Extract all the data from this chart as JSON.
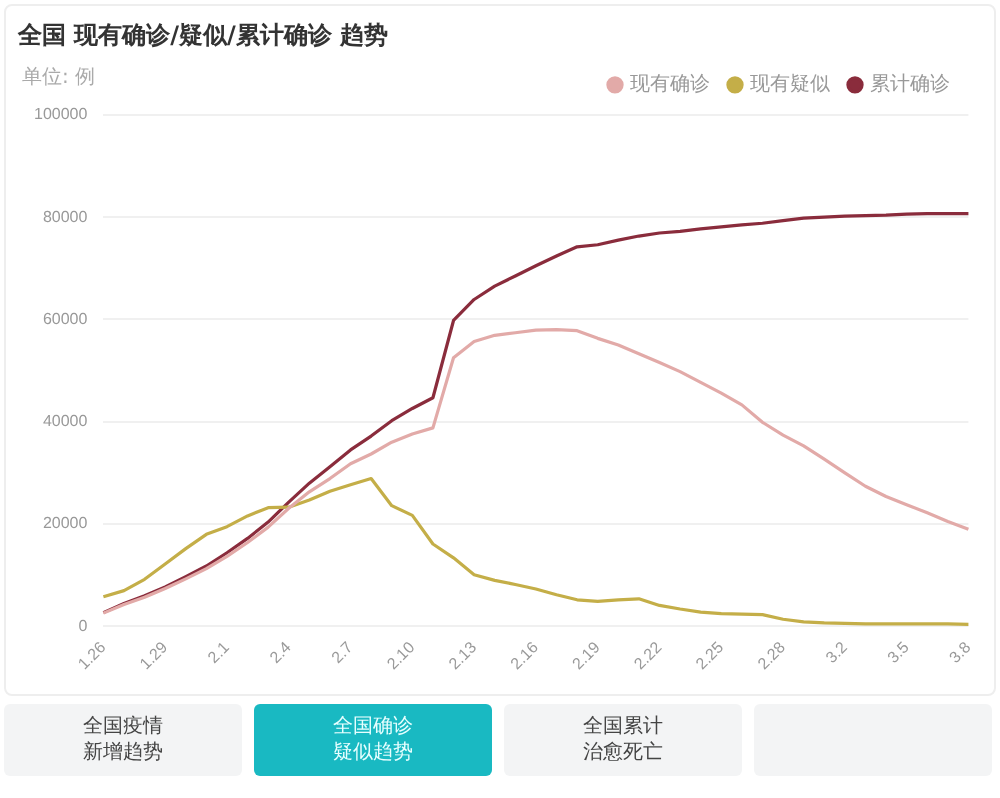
{
  "chart_data": {
    "type": "line",
    "title": "全国 现有确诊/疑似/累计确诊 趋势",
    "ylabel": "单位: 例",
    "categories": [
      "1.26",
      null,
      null,
      "1.29",
      null,
      null,
      "2.1",
      null,
      null,
      "2.4",
      null,
      null,
      "2.7",
      null,
      null,
      "2.10",
      null,
      null,
      "2.13",
      null,
      null,
      "2.16",
      null,
      null,
      "2.19",
      null,
      null,
      "2.22",
      null,
      null,
      "2.25",
      null,
      null,
      "2.28",
      null,
      null,
      "3.2",
      null,
      null,
      "3.5",
      null,
      null,
      "3.8"
    ],
    "series": [
      {
        "name": "现有确诊",
        "color": "#e2aaa8",
        "values": [
          2600,
          4300,
          5700,
          7400,
          9300,
          11300,
          13700,
          16400,
          19400,
          23100,
          26300,
          28900,
          31800,
          33700,
          36000,
          37600,
          38800,
          52500,
          55700,
          56900,
          57400,
          57900,
          58000,
          57800,
          56300,
          55000,
          53300,
          51600,
          49800,
          47700,
          45600,
          43300,
          39900,
          37400,
          35300,
          32700,
          30000,
          27400,
          25400,
          23800,
          22200,
          20500,
          19000
        ]
      },
      {
        "name": "现有疑似",
        "color": "#c4ae48",
        "values": [
          5800,
          7000,
          9200,
          12200,
          15200,
          18000,
          19500,
          21600,
          23200,
          23300,
          24700,
          26400,
          27700,
          28900,
          23600,
          21700,
          16100,
          13400,
          10100,
          9000,
          8200,
          7300,
          6200,
          5200,
          4900,
          5200,
          5400,
          4100,
          3400,
          2800,
          2500,
          2400,
          2300,
          1400,
          900,
          700,
          600,
          500,
          500,
          500,
          500,
          500,
          400
        ]
      },
      {
        "name": "累计确诊",
        "color": "#8a2c3c",
        "values": [
          2700,
          4500,
          6000,
          7700,
          9700,
          11800,
          14400,
          17200,
          20400,
          24300,
          28000,
          31200,
          34500,
          37200,
          40200,
          42600,
          44700,
          59800,
          63900,
          66500,
          68500,
          70500,
          72400,
          74200,
          74600,
          75500,
          76300,
          76900,
          77200,
          77700,
          78100,
          78500,
          78800,
          79300,
          79800,
          80000,
          80200,
          80300,
          80400,
          80600,
          80700,
          80700,
          80700
        ]
      }
    ],
    "annotations": [
      "全国疫情新增趋势",
      "全国确诊疑似趋势",
      "全国累计治愈死亡"
    ],
    "ylim": [
      0,
      100000
    ],
    "yticks": [
      0,
      20000,
      40000,
      60000,
      80000,
      100000
    ],
    "grid": "y",
    "legend": "top right",
    "marker": "none",
    "line_style": "solid"
  }
}
